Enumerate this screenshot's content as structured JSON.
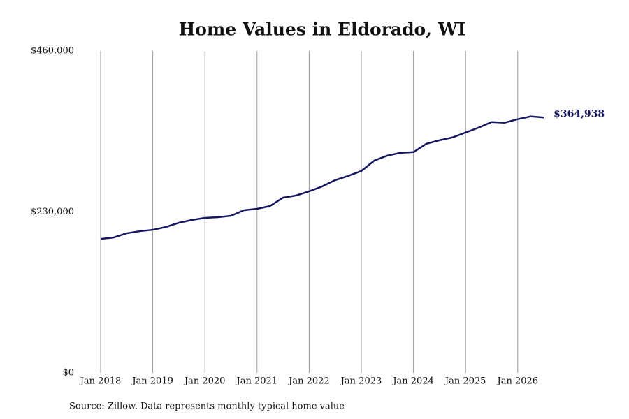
{
  "chart_data": {
    "type": "line",
    "title": "Home Values in Eldorado, WI",
    "source": "Source: Zillow. Data represents monthly typical home value",
    "x": [
      "2018-01",
      "2018-04",
      "2018-07",
      "2018-10",
      "2019-01",
      "2019-04",
      "2019-07",
      "2019-10",
      "2020-01",
      "2020-04",
      "2020-07",
      "2020-10",
      "2021-01",
      "2021-04",
      "2021-07",
      "2021-10",
      "2022-01",
      "2022-04",
      "2022-07",
      "2022-10",
      "2023-01",
      "2023-04",
      "2023-07",
      "2023-10",
      "2024-01",
      "2024-04",
      "2024-07",
      "2024-10",
      "2025-01",
      "2025-04",
      "2025-07",
      "2025-10",
      "2026-01",
      "2026-04",
      "2026-07"
    ],
    "series": [
      {
        "name": "Home value",
        "color": "#141660",
        "values": [
          191500,
          193500,
          199500,
          202500,
          204500,
          208500,
          214500,
          218500,
          221500,
          222500,
          224500,
          232500,
          234500,
          238500,
          250500,
          253500,
          259500,
          266500,
          275500,
          281500,
          288500,
          303500,
          310500,
          314500,
          315500,
          327500,
          332500,
          336500,
          343500,
          350500,
          358500,
          357500,
          362500,
          366500,
          364938
        ],
        "value_labels": [
          null,
          null,
          null,
          null,
          null,
          null,
          null,
          null,
          null,
          null,
          null,
          null,
          null,
          null,
          null,
          null,
          null,
          null,
          null,
          null,
          null,
          null,
          null,
          null,
          null,
          null,
          null,
          null,
          null,
          null,
          null,
          null,
          null,
          null,
          "$364,938"
        ]
      }
    ],
    "ylim": [
      0,
      460000
    ],
    "yticks": [
      {
        "value": 0,
        "label": "$0"
      },
      {
        "value": 230000,
        "label": "$230,000"
      },
      {
        "value": 460000,
        "label": "$460,000"
      }
    ],
    "xticks": [
      {
        "value": "2018-01",
        "label": "Jan 2018"
      },
      {
        "value": "2019-01",
        "label": "Jan 2019"
      },
      {
        "value": "2020-01",
        "label": "Jan 2020"
      },
      {
        "value": "2021-01",
        "label": "Jan 2021"
      },
      {
        "value": "2022-01",
        "label": "Jan 2022"
      },
      {
        "value": "2023-01",
        "label": "Jan 2023"
      },
      {
        "value": "2024-01",
        "label": "Jan 2024"
      },
      {
        "value": "2025-01",
        "label": "Jan 2025"
      },
      {
        "value": "2026-01",
        "label": "Jan 2026"
      }
    ],
    "grid": "x"
  }
}
